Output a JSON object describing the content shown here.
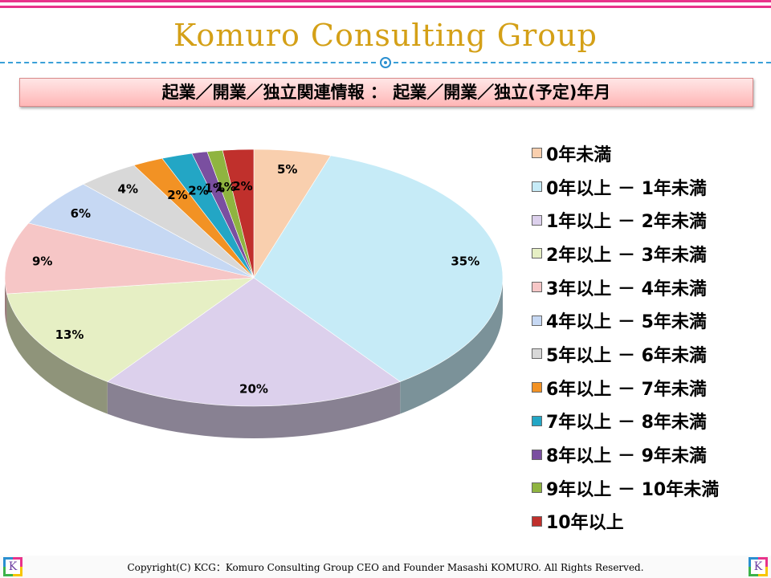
{
  "header": {
    "title": "Komuro Consulting Group"
  },
  "subtitle": "起業／開業／独立関連情報 ： 起業／開業／独立(予定)年月",
  "footer": {
    "copyright": "Copyright(C) KCG：Komuro Consulting Group CEO and Founder Masashi KOMURO. All Rights Reserved."
  },
  "logo": {
    "letter": "K"
  },
  "colors": {
    "stripe": "#e8338b",
    "title": "#d4a017",
    "dash": "#3aa0d8"
  },
  "chart_data": {
    "type": "pie",
    "style": "3d",
    "legend_position": "right",
    "categories": [
      "0年未満",
      "0年以上 － 1年未満",
      "1年以上 － 2年未満",
      "2年以上 － 3年未満",
      "3年以上 － 4年未満",
      "4年以上 － 5年未満",
      "5年以上 － 6年未満",
      "6年以上 － 7年未満",
      "7年以上 － 8年未満",
      "8年以上 － 9年未満",
      "9年以上 － 10年未満",
      "10年以上"
    ],
    "values": [
      5,
      35,
      20,
      13,
      9,
      6,
      4,
      2,
      2,
      1,
      1,
      2
    ],
    "labels": [
      "5%",
      "35%",
      "20%",
      "13%",
      "9%",
      "6%",
      "4%",
      "2%",
      "2%",
      "1%",
      "1%",
      "2%"
    ],
    "colors": [
      "#f9cfae",
      "#c6ebf7",
      "#dcd0ec",
      "#e6efc4",
      "#f6c6c6",
      "#c6d8f3",
      "#d8d8d8",
      "#f29224",
      "#23a6c5",
      "#7a4fa0",
      "#8fb440",
      "#c0302c"
    ]
  }
}
